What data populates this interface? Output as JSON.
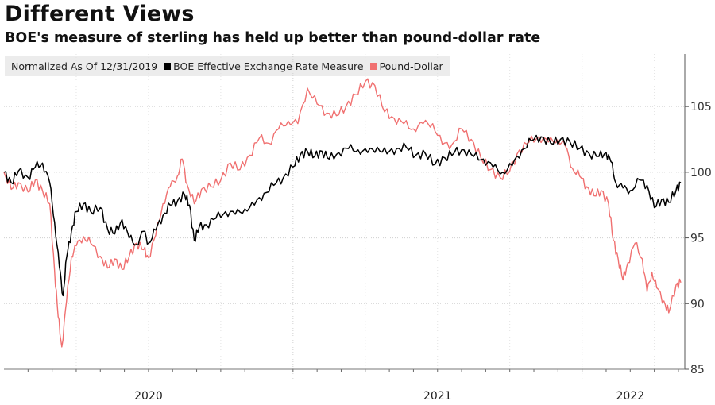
{
  "header": {
    "title": "Different Views",
    "subtitle": "BOE's measure of sterling has held up better than pound-dollar rate"
  },
  "legend": {
    "normalized_label": "Normalized As Of 12/31/2019",
    "items": [
      {
        "label": "BOE Effective Exchange Rate Measure",
        "color": "#000000"
      },
      {
        "label": "Pound-Dollar",
        "color": "#f07070"
      }
    ]
  },
  "chart_data": {
    "type": "line",
    "title": "Different Views",
    "subtitle": "BOE's measure of sterling has held up better than pound-dollar rate",
    "xlabel": "",
    "ylabel": "",
    "ylim": [
      85,
      109
    ],
    "y_ticks": [
      85,
      90,
      95,
      100,
      105
    ],
    "y_axis_side": "right",
    "x_tick_labels": [
      "2020",
      "2021",
      "2022"
    ],
    "grid": true,
    "x_unit": "months since 2019-12-31",
    "xlim": [
      0,
      28.2
    ],
    "series": [
      {
        "name": "BOE Effective Exchange Rate Measure",
        "color": "#000000",
        "points": [
          [
            0,
            100.0
          ],
          [
            0.3,
            99.2
          ],
          [
            0.6,
            100.1
          ],
          [
            1.0,
            99.6
          ],
          [
            1.3,
            100.4
          ],
          [
            1.6,
            100.7
          ],
          [
            1.9,
            99.2
          ],
          [
            2.1,
            96.2
          ],
          [
            2.3,
            92.8
          ],
          [
            2.45,
            90.6
          ],
          [
            2.6,
            93.5
          ],
          [
            2.8,
            95.5
          ],
          [
            3.0,
            97.0
          ],
          [
            3.3,
            97.6
          ],
          [
            3.6,
            97.0
          ],
          [
            4.0,
            97.3
          ],
          [
            4.3,
            95.7
          ],
          [
            4.6,
            95.3
          ],
          [
            4.9,
            96.4
          ],
          [
            5.2,
            95.0
          ],
          [
            5.5,
            94.5
          ],
          [
            5.8,
            95.5
          ],
          [
            6.0,
            94.6
          ],
          [
            6.3,
            95.6
          ],
          [
            6.6,
            96.7
          ],
          [
            6.9,
            97.5
          ],
          [
            7.2,
            97.8
          ],
          [
            7.5,
            98.3
          ],
          [
            7.7,
            97.5
          ],
          [
            7.9,
            94.8
          ],
          [
            8.1,
            95.8
          ],
          [
            8.4,
            96.0
          ],
          [
            8.8,
            96.5
          ],
          [
            9.2,
            97.0
          ],
          [
            9.6,
            96.8
          ],
          [
            10.0,
            97.2
          ],
          [
            10.4,
            97.5
          ],
          [
            10.8,
            98.4
          ],
          [
            11.2,
            99.0
          ],
          [
            11.6,
            99.6
          ],
          [
            12.0,
            100.4
          ],
          [
            12.3,
            101.3
          ],
          [
            12.6,
            101.6
          ],
          [
            12.9,
            101.2
          ],
          [
            13.2,
            101.6
          ],
          [
            13.5,
            101.0
          ],
          [
            13.9,
            101.5
          ],
          [
            14.3,
            101.8
          ],
          [
            14.7,
            101.7
          ],
          [
            15.1,
            101.5
          ],
          [
            15.5,
            101.9
          ],
          [
            15.9,
            101.4
          ],
          [
            16.3,
            101.8
          ],
          [
            16.7,
            101.9
          ],
          [
            17.1,
            101.3
          ],
          [
            17.5,
            101.4
          ],
          [
            17.9,
            100.6
          ],
          [
            18.3,
            101.1
          ],
          [
            18.7,
            101.5
          ],
          [
            19.1,
            101.7
          ],
          [
            19.5,
            101.2
          ],
          [
            19.9,
            101.0
          ],
          [
            20.3,
            100.4
          ],
          [
            20.7,
            100.0
          ],
          [
            21.1,
            100.5
          ],
          [
            21.5,
            101.7
          ],
          [
            21.9,
            102.4
          ],
          [
            22.3,
            102.7
          ],
          [
            22.7,
            102.2
          ],
          [
            23.1,
            102.5
          ],
          [
            23.5,
            102.3
          ],
          [
            23.9,
            101.8
          ],
          [
            24.3,
            101.4
          ],
          [
            24.7,
            101.2
          ],
          [
            25.0,
            101.5
          ],
          [
            25.2,
            100.8
          ],
          [
            25.4,
            99.2
          ],
          [
            25.7,
            98.8
          ],
          [
            26.0,
            98.6
          ],
          [
            26.4,
            99.4
          ],
          [
            26.7,
            99.0
          ],
          [
            27.0,
            97.3
          ],
          [
            27.3,
            97.9
          ],
          [
            27.6,
            97.7
          ],
          [
            27.9,
            98.6
          ],
          [
            28.1,
            99.2
          ]
        ]
      },
      {
        "name": "Pound-Dollar",
        "color": "#f07070",
        "points": [
          [
            0,
            100.0
          ],
          [
            0.3,
            98.7
          ],
          [
            0.6,
            99.2
          ],
          [
            1.0,
            98.5
          ],
          [
            1.3,
            99.4
          ],
          [
            1.6,
            98.6
          ],
          [
            1.9,
            97.6
          ],
          [
            2.1,
            92.5
          ],
          [
            2.25,
            89.0
          ],
          [
            2.4,
            86.7
          ],
          [
            2.6,
            90.2
          ],
          [
            2.8,
            93.6
          ],
          [
            3.0,
            94.4
          ],
          [
            3.3,
            95.1
          ],
          [
            3.6,
            94.6
          ],
          [
            4.0,
            93.6
          ],
          [
            4.3,
            92.7
          ],
          [
            4.6,
            93.4
          ],
          [
            4.9,
            92.6
          ],
          [
            5.2,
            93.6
          ],
          [
            5.5,
            94.6
          ],
          [
            5.8,
            94.1
          ],
          [
            6.0,
            93.5
          ],
          [
            6.3,
            95.2
          ],
          [
            6.6,
            97.6
          ],
          [
            6.9,
            98.9
          ],
          [
            7.2,
            99.7
          ],
          [
            7.4,
            101.0
          ],
          [
            7.6,
            99.1
          ],
          [
            7.9,
            97.6
          ],
          [
            8.2,
            98.7
          ],
          [
            8.6,
            98.9
          ],
          [
            9.0,
            99.4
          ],
          [
            9.4,
            100.7
          ],
          [
            9.8,
            100.2
          ],
          [
            10.2,
            101.3
          ],
          [
            10.6,
            102.6
          ],
          [
            11.0,
            102.2
          ],
          [
            11.4,
            103.3
          ],
          [
            11.8,
            103.9
          ],
          [
            12.2,
            103.7
          ],
          [
            12.6,
            106.4
          ],
          [
            13.0,
            105.2
          ],
          [
            13.4,
            104.5
          ],
          [
            13.8,
            104.3
          ],
          [
            14.2,
            105.0
          ],
          [
            14.6,
            105.9
          ],
          [
            15.0,
            106.9
          ],
          [
            15.4,
            106.6
          ],
          [
            15.8,
            104.6
          ],
          [
            16.2,
            104.1
          ],
          [
            16.6,
            103.7
          ],
          [
            17.0,
            103.3
          ],
          [
            17.4,
            103.7
          ],
          [
            17.8,
            103.7
          ],
          [
            18.2,
            102.1
          ],
          [
            18.6,
            102.1
          ],
          [
            19.0,
            103.3
          ],
          [
            19.4,
            102.5
          ],
          [
            19.8,
            101.1
          ],
          [
            20.2,
            100.2
          ],
          [
            20.6,
            99.6
          ],
          [
            21.0,
            100.1
          ],
          [
            21.4,
            101.7
          ],
          [
            21.8,
            102.3
          ],
          [
            22.2,
            102.7
          ],
          [
            22.6,
            102.3
          ],
          [
            23.0,
            102.5
          ],
          [
            23.3,
            102.0
          ],
          [
            23.6,
            100.3
          ],
          [
            23.9,
            99.7
          ],
          [
            24.2,
            98.9
          ],
          [
            24.5,
            98.2
          ],
          [
            24.8,
            98.6
          ],
          [
            25.1,
            97.6
          ],
          [
            25.3,
            94.8
          ],
          [
            25.5,
            93.4
          ],
          [
            25.7,
            91.8
          ],
          [
            25.9,
            93.1
          ],
          [
            26.2,
            94.6
          ],
          [
            26.5,
            93.4
          ],
          [
            26.7,
            90.9
          ],
          [
            26.9,
            92.4
          ],
          [
            27.1,
            91.2
          ],
          [
            27.4,
            90.2
          ],
          [
            27.6,
            89.3
          ],
          [
            27.9,
            91.4
          ],
          [
            28.1,
            91.6
          ]
        ]
      }
    ]
  }
}
